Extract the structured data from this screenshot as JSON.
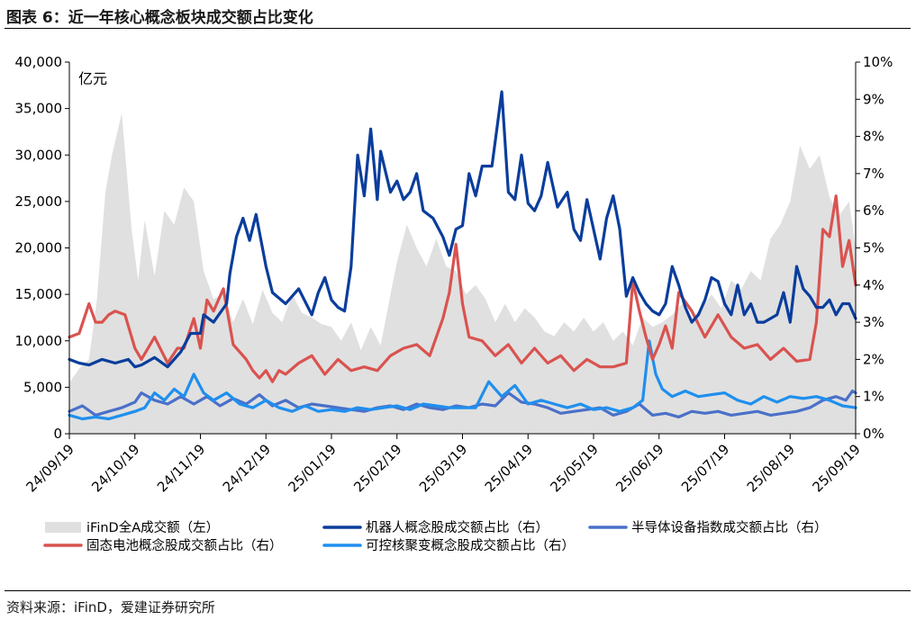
{
  "figure_title": "图表 6：近一年核心概念板块成交额占比变化",
  "source": "资料来源：iFinD，爱建证券研究所",
  "colors": {
    "area": "#e0e0e0",
    "robot": "#0a3d9c",
    "semiconductor": "#4a70c8",
    "solid_battery": "#d9534f",
    "fusion": "#1f8fee"
  },
  "chart_data": {
    "type": "line",
    "unit_label": "亿元",
    "left_axis": {
      "ylim": [
        0,
        40000
      ],
      "ticks": [
        "0",
        "5,000",
        "10,000",
        "15,000",
        "20,000",
        "25,000",
        "30,000",
        "35,000",
        "40,000"
      ]
    },
    "right_axis": {
      "ylim": [
        0,
        10
      ],
      "ticks": [
        "0%",
        "1%",
        "2%",
        "3%",
        "4%",
        "5%",
        "6%",
        "7%",
        "8%",
        "9%",
        "10%"
      ]
    },
    "x_ticks": [
      "24/09/19",
      "24/10/19",
      "24/11/19",
      "24/12/19",
      "25/01/19",
      "25/02/19",
      "25/03/19",
      "25/04/19",
      "25/05/19",
      "25/06/19",
      "25/07/19",
      "25/08/19",
      "25/09/19"
    ],
    "x_range": [
      0,
      12
    ],
    "series": [
      {
        "key": "area",
        "name": "iFinD全A成交额（左）",
        "axis": "left",
        "kind": "area",
        "x": [
          0,
          0.15,
          0.3,
          0.42,
          0.55,
          0.65,
          0.8,
          0.95,
          1.05,
          1.15,
          1.3,
          1.45,
          1.6,
          1.75,
          1.9,
          2.05,
          2.2,
          2.35,
          2.5,
          2.65,
          2.8,
          2.95,
          3.1,
          3.25,
          3.4,
          3.55,
          3.7,
          3.85,
          4.0,
          4.15,
          4.3,
          4.45,
          4.6,
          4.75,
          4.9,
          5.0,
          5.15,
          5.3,
          5.45,
          5.6,
          5.75,
          5.9,
          6.05,
          6.2,
          6.35,
          6.5,
          6.65,
          6.8,
          6.95,
          7.1,
          7.25,
          7.4,
          7.55,
          7.7,
          7.85,
          8.0,
          8.15,
          8.3,
          8.45,
          8.6,
          8.75,
          8.9,
          9.05,
          9.2,
          9.35,
          9.5,
          9.65,
          9.8,
          9.95,
          10.1,
          10.25,
          10.4,
          10.55,
          10.7,
          10.85,
          11.0,
          11.15,
          11.3,
          11.45,
          11.6,
          11.75,
          11.9,
          12.0
        ],
        "values": [
          5500,
          7000,
          8000,
          14500,
          26000,
          30000,
          34500,
          22000,
          16500,
          23000,
          17000,
          24000,
          22500,
          26500,
          25000,
          17500,
          14500,
          15000,
          12000,
          14500,
          11800,
          15500,
          13000,
          12000,
          15000,
          13000,
          12500,
          11800,
          11500,
          10000,
          12000,
          9000,
          11500,
          9500,
          15000,
          18500,
          22500,
          20000,
          18000,
          21000,
          18000,
          17500,
          15000,
          16000,
          14500,
          12000,
          14000,
          12000,
          13500,
          12500,
          11000,
          10500,
          12000,
          11000,
          12500,
          11000,
          12000,
          10000,
          11000,
          9500,
          12500,
          11500,
          12000,
          12800,
          14000,
          12500,
          13500,
          15000,
          13500,
          16500,
          15500,
          17500,
          16500,
          21000,
          22500,
          25000,
          31000,
          28500,
          30000,
          25500,
          23500,
          25000,
          20000
        ]
      },
      {
        "key": "robot",
        "name": "机器人概念股成交额占比（右）",
        "axis": "right",
        "kind": "line",
        "x": [
          0,
          0.15,
          0.3,
          0.5,
          0.7,
          0.9,
          1.0,
          1.1,
          1.3,
          1.5,
          1.7,
          1.85,
          2.0,
          2.05,
          2.2,
          2.4,
          2.45,
          2.55,
          2.65,
          2.75,
          2.85,
          3.0,
          3.1,
          3.3,
          3.5,
          3.7,
          3.8,
          3.9,
          4.0,
          4.1,
          4.2,
          4.3,
          4.4,
          4.5,
          4.6,
          4.7,
          4.75,
          4.9,
          5.0,
          5.1,
          5.2,
          5.3,
          5.4,
          5.55,
          5.7,
          5.8,
          5.9,
          6.0,
          6.1,
          6.2,
          6.3,
          6.45,
          6.6,
          6.7,
          6.8,
          6.9,
          7.0,
          7.1,
          7.2,
          7.3,
          7.45,
          7.6,
          7.7,
          7.8,
          7.9,
          8.0,
          8.1,
          8.2,
          8.3,
          8.4,
          8.5,
          8.6,
          8.7,
          8.8,
          8.9,
          9.0,
          9.1,
          9.2,
          9.3,
          9.4,
          9.5,
          9.6,
          9.7,
          9.8,
          9.9,
          10.0,
          10.1,
          10.2,
          10.3,
          10.4,
          10.5,
          10.6,
          10.7,
          10.8,
          10.9,
          11.0,
          11.1,
          11.2,
          11.3,
          11.4,
          11.5,
          11.6,
          11.7,
          11.8,
          11.9,
          12.0
        ],
        "values": [
          2.0,
          1.9,
          1.85,
          2.0,
          1.9,
          2.0,
          1.8,
          1.85,
          2.05,
          1.8,
          2.2,
          2.7,
          2.7,
          3.2,
          3.0,
          3.5,
          4.3,
          5.3,
          5.8,
          5.2,
          5.9,
          4.5,
          3.8,
          3.5,
          3.9,
          3.2,
          3.8,
          4.2,
          3.6,
          3.4,
          3.3,
          4.5,
          7.5,
          6.4,
          8.2,
          6.3,
          7.6,
          6.5,
          6.8,
          6.3,
          6.5,
          7.0,
          6.0,
          5.8,
          5.3,
          4.8,
          5.5,
          5.6,
          7.0,
          6.4,
          7.2,
          7.2,
          9.2,
          6.5,
          6.3,
          7.5,
          6.2,
          6.0,
          6.4,
          7.3,
          6.1,
          6.5,
          5.5,
          5.2,
          6.3,
          5.5,
          4.7,
          5.8,
          6.4,
          5.5,
          3.7,
          4.2,
          3.8,
          3.5,
          3.3,
          3.2,
          3.5,
          4.5,
          4.0,
          3.4,
          3.0,
          3.2,
          3.6,
          4.2,
          4.1,
          3.5,
          3.2,
          4.0,
          3.2,
          3.5,
          3.0,
          3.0,
          3.1,
          3.2,
          3.8,
          3.0,
          4.5,
          3.9,
          3.7,
          3.4,
          3.4,
          3.6,
          3.2,
          3.5,
          3.5,
          3.1
        ]
      },
      {
        "key": "semiconductor",
        "name": "半导体设备指数成交额占比（右）",
        "axis": "right",
        "kind": "line",
        "x": [
          0,
          0.2,
          0.4,
          0.6,
          0.8,
          1.0,
          1.1,
          1.3,
          1.5,
          1.7,
          1.9,
          2.1,
          2.3,
          2.5,
          2.7,
          2.9,
          3.1,
          3.3,
          3.5,
          3.7,
          3.9,
          4.1,
          4.3,
          4.5,
          4.7,
          4.9,
          5.1,
          5.3,
          5.5,
          5.7,
          5.9,
          6.1,
          6.3,
          6.5,
          6.7,
          6.9,
          7.1,
          7.3,
          7.5,
          7.7,
          7.9,
          8.1,
          8.3,
          8.5,
          8.7,
          8.9,
          9.1,
          9.3,
          9.5,
          9.7,
          9.9,
          10.1,
          10.3,
          10.5,
          10.7,
          10.9,
          11.1,
          11.3,
          11.5,
          11.7,
          11.85,
          11.95,
          12.0
        ],
        "values": [
          0.6,
          0.75,
          0.5,
          0.6,
          0.7,
          0.85,
          1.1,
          0.9,
          0.8,
          1.0,
          0.8,
          1.0,
          0.75,
          0.95,
          0.8,
          1.05,
          0.75,
          0.9,
          0.7,
          0.8,
          0.75,
          0.7,
          0.65,
          0.6,
          0.7,
          0.75,
          0.65,
          0.8,
          0.7,
          0.65,
          0.75,
          0.7,
          0.8,
          0.75,
          1.1,
          0.85,
          0.8,
          0.7,
          0.55,
          0.6,
          0.65,
          0.7,
          0.5,
          0.6,
          0.8,
          0.5,
          0.55,
          0.45,
          0.6,
          0.55,
          0.6,
          0.5,
          0.55,
          0.6,
          0.5,
          0.55,
          0.6,
          0.7,
          0.9,
          1.0,
          0.9,
          1.15,
          1.1
        ]
      },
      {
        "key": "solid_battery",
        "name": "固态电池概念股成交额占比（右）",
        "axis": "right",
        "kind": "line",
        "x": [
          0,
          0.15,
          0.3,
          0.4,
          0.5,
          0.6,
          0.7,
          0.85,
          1.0,
          1.1,
          1.3,
          1.5,
          1.65,
          1.75,
          1.9,
          2.0,
          2.1,
          2.2,
          2.35,
          2.5,
          2.6,
          2.7,
          2.8,
          2.9,
          3.0,
          3.1,
          3.2,
          3.3,
          3.5,
          3.7,
          3.9,
          4.1,
          4.3,
          4.5,
          4.7,
          4.9,
          5.1,
          5.3,
          5.5,
          5.7,
          5.8,
          5.9,
          6.0,
          6.1,
          6.3,
          6.5,
          6.7,
          6.9,
          7.1,
          7.3,
          7.5,
          7.7,
          7.9,
          8.1,
          8.3,
          8.5,
          8.6,
          8.7,
          8.8,
          8.9,
          9.0,
          9.1,
          9.2,
          9.3,
          9.5,
          9.7,
          9.9,
          10.1,
          10.3,
          10.5,
          10.7,
          10.9,
          11.1,
          11.3,
          11.4,
          11.5,
          11.6,
          11.7,
          11.8,
          11.9,
          12.0
        ],
        "values": [
          2.6,
          2.7,
          3.5,
          3.0,
          3.0,
          3.2,
          3.3,
          3.2,
          2.3,
          2.0,
          2.6,
          1.9,
          2.3,
          2.3,
          3.1,
          2.3,
          3.6,
          3.3,
          3.9,
          2.4,
          2.2,
          2.0,
          1.7,
          1.5,
          1.7,
          1.4,
          1.7,
          1.6,
          1.9,
          2.1,
          1.6,
          2.0,
          1.7,
          1.8,
          1.7,
          2.1,
          2.3,
          2.4,
          2.1,
          3.1,
          3.8,
          5.1,
          3.5,
          2.6,
          2.5,
          2.1,
          2.4,
          1.9,
          2.3,
          1.9,
          2.1,
          1.7,
          2.0,
          1.8,
          1.8,
          1.9,
          4.1,
          3.3,
          2.6,
          2.0,
          2.4,
          2.9,
          2.3,
          3.8,
          3.3,
          2.6,
          3.2,
          2.6,
          2.3,
          2.4,
          2.0,
          2.3,
          1.95,
          2.0,
          3.0,
          5.5,
          5.3,
          6.4,
          4.5,
          5.2,
          4.0
        ]
      },
      {
        "key": "fusion",
        "name": "可控核聚变概念股成交额占比（右）",
        "axis": "right",
        "kind": "line",
        "x": [
          0,
          0.2,
          0.4,
          0.6,
          0.8,
          1.0,
          1.15,
          1.3,
          1.45,
          1.6,
          1.75,
          1.9,
          2.05,
          2.2,
          2.4,
          2.6,
          2.8,
          3.0,
          3.2,
          3.4,
          3.6,
          3.8,
          4.0,
          4.2,
          4.4,
          4.6,
          4.8,
          5.0,
          5.2,
          5.4,
          5.6,
          5.8,
          6.0,
          6.2,
          6.4,
          6.6,
          6.8,
          7.0,
          7.2,
          7.4,
          7.6,
          7.8,
          8.0,
          8.2,
          8.4,
          8.6,
          8.75,
          8.85,
          8.95,
          9.05,
          9.2,
          9.4,
          9.6,
          9.8,
          10.0,
          10.2,
          10.4,
          10.6,
          10.8,
          11.0,
          11.2,
          11.4,
          11.6,
          11.8,
          12.0
        ],
        "values": [
          0.5,
          0.4,
          0.45,
          0.4,
          0.5,
          0.6,
          0.7,
          1.1,
          0.9,
          1.2,
          1.0,
          1.6,
          1.1,
          0.9,
          1.1,
          0.8,
          0.7,
          0.9,
          0.7,
          0.6,
          0.75,
          0.6,
          0.65,
          0.6,
          0.7,
          0.65,
          0.7,
          0.75,
          0.65,
          0.8,
          0.75,
          0.7,
          0.7,
          0.7,
          1.4,
          1.0,
          1.3,
          0.8,
          0.9,
          0.8,
          0.7,
          0.8,
          0.65,
          0.7,
          0.6,
          0.7,
          0.9,
          2.5,
          1.6,
          1.2,
          1.0,
          1.15,
          1.0,
          1.05,
          1.1,
          0.9,
          0.8,
          1.0,
          0.85,
          1.0,
          0.95,
          1.0,
          0.9,
          0.75,
          0.7
        ]
      }
    ],
    "legend": {
      "row1": [
        "area",
        "robot",
        "semiconductor"
      ],
      "row2": [
        "solid_battery",
        "fusion"
      ]
    }
  }
}
